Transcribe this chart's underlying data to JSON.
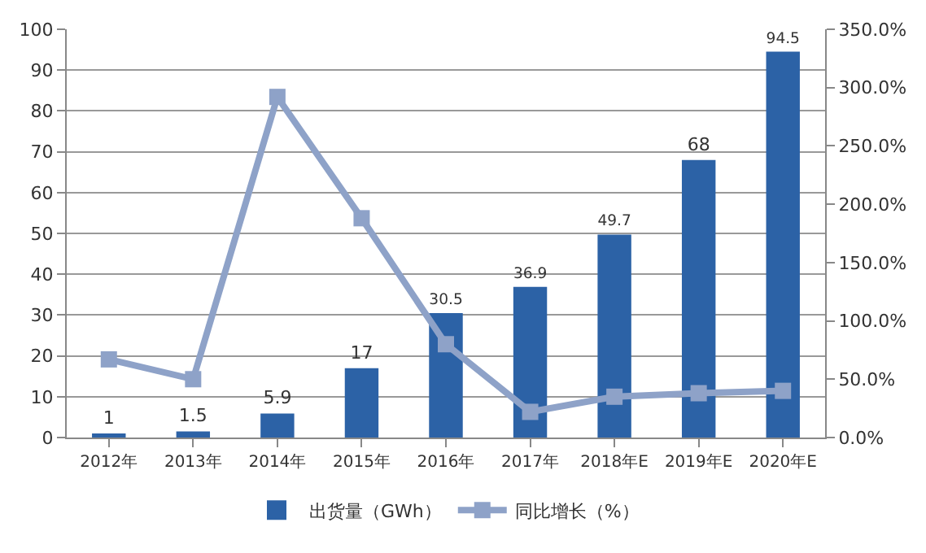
{
  "chart_data": {
    "type": "bar",
    "categories": [
      "2012年",
      "2013年",
      "2014年",
      "2015年",
      "2016年",
      "2017年",
      "2018年E",
      "2019年E",
      "2020年E"
    ],
    "series": [
      {
        "name": "出货量（GWh）",
        "color": "#2c62a6",
        "values": [
          1,
          1.5,
          5.9,
          17,
          30.5,
          36.9,
          49.7,
          68,
          94.5
        ],
        "data_labels": true
      },
      {
        "name": "同比增长（%）",
        "type": "line",
        "axis": "y2",
        "color": "#8ea2c8",
        "marker": "square",
        "values": [
          67,
          50,
          292,
          188,
          80,
          22,
          35,
          38,
          40
        ]
      }
    ],
    "ylim": [
      0,
      100
    ],
    "yticks": [
      0,
      10,
      20,
      30,
      40,
      50,
      60,
      70,
      80,
      90,
      100
    ],
    "y2lim": [
      0,
      350
    ],
    "y2ticks": [
      {
        "value": 0,
        "label": "0.0%"
      },
      {
        "value": 50,
        "label": "50.0%"
      },
      {
        "value": 100,
        "label": "100.0%"
      },
      {
        "value": 150,
        "label": "150.0%"
      },
      {
        "value": 200,
        "label": "200.0%"
      },
      {
        "value": 250,
        "label": "250.0%"
      },
      {
        "value": 300,
        "label": "300.0%"
      },
      {
        "value": 350,
        "label": "350.0%"
      }
    ],
    "grid": "y",
    "legend": "bottom"
  }
}
